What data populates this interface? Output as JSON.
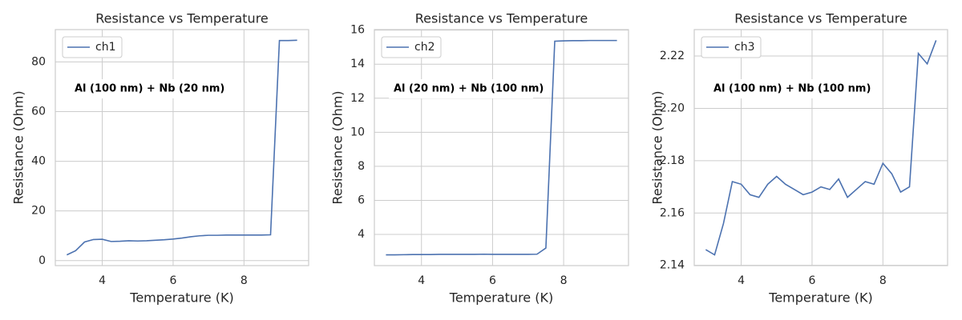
{
  "chart_data": [
    {
      "type": "line",
      "title": "Resistance vs Temperature",
      "x_label": "Temperature (K)",
      "y_label": "Resistance (Ohm)",
      "annotation": "Al (100 nm) + Nb (20 nm)",
      "grid": true,
      "legend": "upper left",
      "x": [
        3.0,
        3.25,
        3.5,
        3.75,
        4.0,
        4.25,
        4.5,
        4.75,
        5.0,
        5.25,
        5.5,
        5.75,
        6.0,
        6.25,
        6.5,
        6.75,
        7.0,
        7.25,
        7.5,
        7.75,
        8.0,
        8.25,
        8.5,
        8.75,
        9.0,
        9.25,
        9.5
      ],
      "series": [
        {
          "name": "ch1",
          "color": "#4c72b0",
          "values": [
            2.3,
            4.0,
            7.5,
            8.5,
            8.6,
            7.7,
            7.8,
            8.0,
            7.9,
            8.0,
            8.2,
            8.4,
            8.7,
            9.1,
            9.6,
            10.0,
            10.2,
            10.2,
            10.3,
            10.3,
            10.3,
            10.3,
            10.3,
            10.4,
            88.6,
            88.6,
            88.7
          ]
        }
      ],
      "xlim": [
        2.675,
        9.825
      ],
      "xticks": [
        4,
        6,
        8
      ],
      "ylim": [
        -2.0,
        93.0
      ],
      "yticks": [
        0,
        20,
        40,
        60,
        80
      ]
    },
    {
      "type": "line",
      "title": "Resistance vs Temperature",
      "x_label": "Temperature (K)",
      "y_label": "Resistance (Ohm)",
      "annotation": "Al (20 nm) + Nb (100 nm)",
      "grid": true,
      "legend": "upper left",
      "x": [
        3.0,
        3.25,
        3.5,
        3.75,
        4.0,
        4.25,
        4.5,
        4.75,
        5.0,
        5.25,
        5.5,
        5.75,
        6.0,
        6.25,
        6.5,
        6.75,
        7.0,
        7.25,
        7.5,
        7.75,
        8.0,
        8.25,
        8.5,
        8.75,
        9.0,
        9.25,
        9.5
      ],
      "series": [
        {
          "name": "ch2",
          "color": "#4c72b0",
          "values": [
            2.8,
            2.8,
            2.81,
            2.82,
            2.82,
            2.82,
            2.83,
            2.83,
            2.83,
            2.83,
            2.83,
            2.84,
            2.83,
            2.83,
            2.83,
            2.83,
            2.83,
            2.84,
            3.2,
            15.35,
            15.37,
            15.38,
            15.38,
            15.39,
            15.39,
            15.39,
            15.39
          ]
        }
      ],
      "xlim": [
        2.675,
        9.825
      ],
      "xticks": [
        4,
        6,
        8
      ],
      "ylim": [
        2.17,
        16.03
      ],
      "yticks": [
        4,
        6,
        8,
        10,
        12,
        14,
        16
      ]
    },
    {
      "type": "line",
      "title": "Resistance vs Temperature",
      "x_label": "Temperature (K)",
      "y_label": "Resistance (Ohm)",
      "annotation": "Al (100 nm) + Nb (100 nm)",
      "grid": true,
      "legend": "upper left",
      "x": [
        3.0,
        3.25,
        3.5,
        3.75,
        4.0,
        4.25,
        4.5,
        4.75,
        5.0,
        5.25,
        5.5,
        5.75,
        6.0,
        6.25,
        6.5,
        6.75,
        7.0,
        7.25,
        7.5,
        7.75,
        8.0,
        8.25,
        8.5,
        8.75,
        9.0,
        9.25,
        9.5
      ],
      "series": [
        {
          "name": "ch3",
          "color": "#4c72b0",
          "values": [
            2.146,
            2.144,
            2.156,
            2.172,
            2.171,
            2.167,
            2.166,
            2.171,
            2.174,
            2.171,
            2.169,
            2.167,
            2.168,
            2.17,
            2.169,
            2.173,
            2.166,
            2.169,
            2.172,
            2.171,
            2.179,
            2.175,
            2.168,
            2.17,
            2.221,
            2.217,
            2.226
          ]
        }
      ],
      "xlim": [
        2.675,
        9.825
      ],
      "xticks": [
        4,
        6,
        8
      ],
      "ylim": [
        2.1399,
        2.2301
      ],
      "yticks": [
        2.14,
        2.16,
        2.18,
        {
          "value": 2.2,
          "label": "2.20"
        },
        2.22
      ]
    }
  ]
}
